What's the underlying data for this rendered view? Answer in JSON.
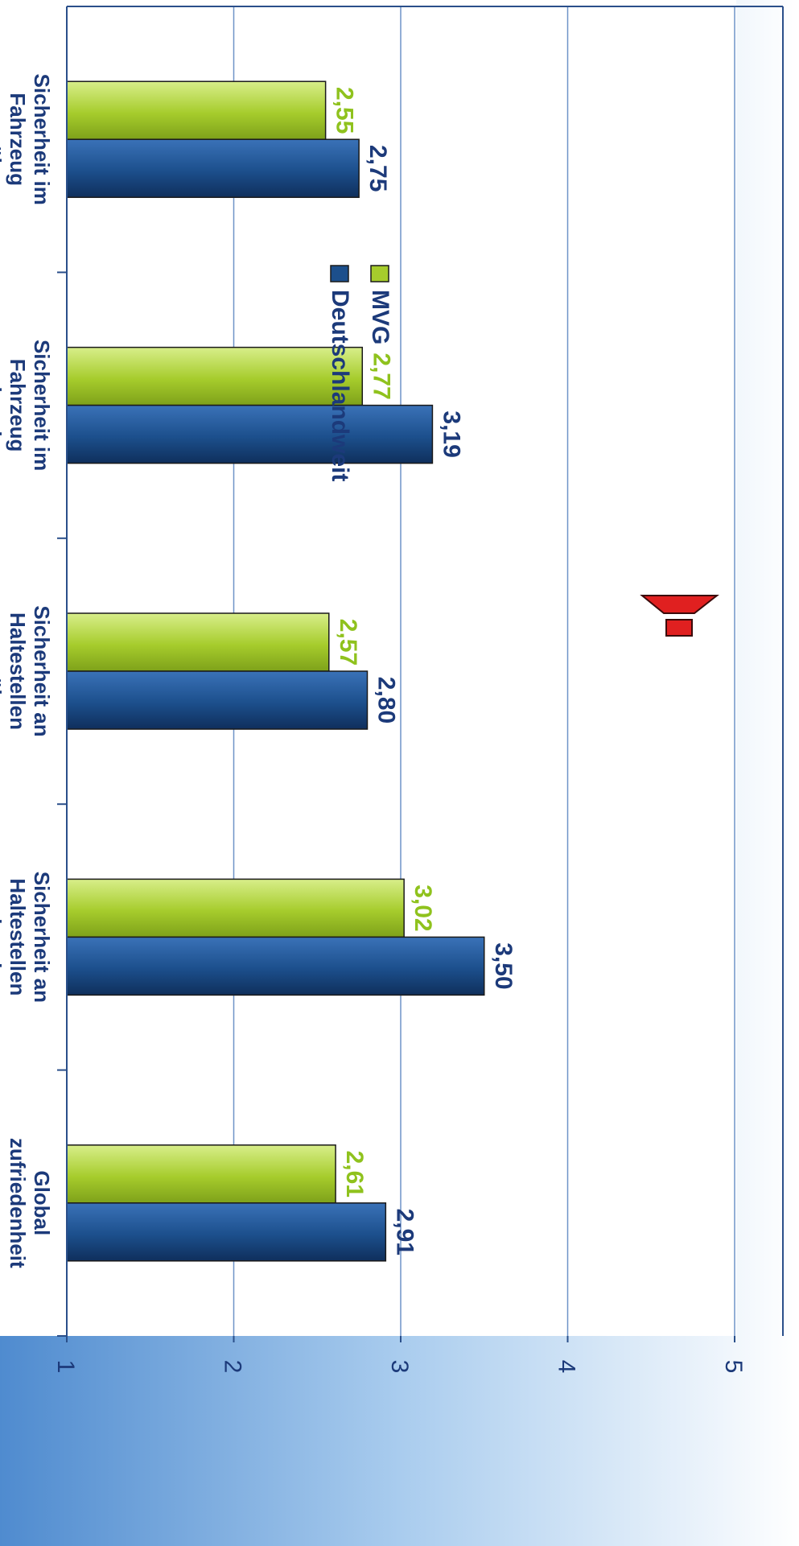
{
  "chart_data": {
    "type": "bar",
    "orientation": "horizontal",
    "rotation": "rotated 90 degrees clockwise on the page",
    "categories": [
      [
        "Sicherheit im",
        "Fahrzeug",
        "- tagsüber"
      ],
      [
        "Sicherheit im",
        "Fahrzeug",
        "- abends"
      ],
      [
        "Sicherheit an",
        "Haltestellen",
        "- tagsüber"
      ],
      [
        "Sicherheit an",
        "Haltestellen",
        "- abends"
      ],
      [
        "Global",
        "zufriedenheit"
      ]
    ],
    "series": [
      {
        "name": "MVG",
        "values": [
          2.55,
          2.77,
          2.57,
          3.02,
          2.61
        ],
        "labels": [
          "2,55",
          "2,77",
          "2,57",
          "3,02",
          "2,61"
        ],
        "color": "#a6cc2c",
        "label_color": "#8fc21d"
      },
      {
        "name": "Deutschlandweit",
        "values": [
          2.75,
          3.19,
          2.8,
          3.5,
          2.91
        ],
        "labels": [
          "2,75",
          "3,19",
          "2,80",
          "3,50",
          "2,91"
        ],
        "color": "#1c4f8c",
        "label_color": "#1c3a7a"
      }
    ],
    "value_axis": {
      "range": [
        1,
        5
      ],
      "ticks": [
        "1",
        "2",
        "3",
        "4",
        "5"
      ]
    },
    "grid": true,
    "legend": {
      "position": "top-right",
      "items": [
        "MVG",
        "Deutschlandweit"
      ]
    },
    "annotation": {
      "type": "exclamation-mark",
      "color": "#e02020",
      "near_category": "Global zufriedenheit"
    },
    "colors": {
      "background": "#5e9ad6",
      "plot_area": "#ffffff",
      "gridline": "#6f93c8",
      "label_text": "#1c3a7a"
    }
  }
}
